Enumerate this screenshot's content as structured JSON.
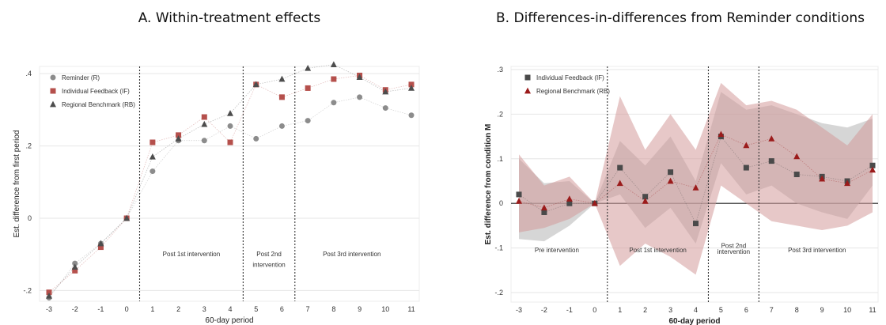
{
  "chart_data": [
    {
      "type": "scatter",
      "title": "A. Within-treatment effects",
      "xlabel": "60-day period",
      "ylabel": "Est. difference from first period",
      "x": [
        -3,
        -2,
        -1,
        0,
        1,
        2,
        3,
        4,
        5,
        6,
        7,
        8,
        9,
        10,
        11
      ],
      "xticks": [
        "-3",
        "-2",
        "-1",
        "0",
        "1",
        "2",
        "3",
        "4",
        "5",
        "6",
        "7",
        "8",
        "9",
        "10",
        "11"
      ],
      "ylim": [
        -0.21,
        0.42
      ],
      "yticks": [
        -0.2,
        0,
        0.2,
        0.4
      ],
      "ytick_labels": [
        "-.2",
        "0",
        ".2",
        ".4"
      ],
      "grid": true,
      "legend_position": "top-left",
      "series": [
        {
          "name": "Reminder (R)",
          "marker": "circle",
          "color": "#8c8c8c",
          "values": [
            -0.22,
            -0.125,
            -0.07,
            0.0,
            0.13,
            0.215,
            0.215,
            0.255,
            0.22,
            0.255,
            0.27,
            0.32,
            0.335,
            0.305,
            0.285
          ]
        },
        {
          "name": "Individual Feedback (IF)",
          "marker": "square",
          "color": "#b5504c",
          "values": [
            -0.205,
            -0.145,
            -0.08,
            0.0,
            0.21,
            0.23,
            0.28,
            0.21,
            0.37,
            0.335,
            0.36,
            0.385,
            0.395,
            0.355,
            0.37
          ]
        },
        {
          "name": "Regional Benchmark (RB)",
          "marker": "triangle",
          "color": "#4d4d4d",
          "values": [
            -0.215,
            -0.135,
            -0.07,
            0.0,
            0.17,
            0.22,
            0.26,
            0.29,
            0.37,
            0.385,
            0.415,
            0.425,
            0.39,
            0.35,
            0.36
          ]
        }
      ],
      "phase_dividers": [
        0.5,
        4.5,
        6.5
      ],
      "annotations": [
        {
          "text": "Post 1st intervention",
          "x": 2.5,
          "y": -0.105
        },
        {
          "text": "Post 2nd",
          "x": 5.5,
          "y": -0.105
        },
        {
          "text": "intervention",
          "x": 5.5,
          "y": -0.135
        },
        {
          "text": "Post 3rd intervention",
          "x": 8.7,
          "y": -0.105
        }
      ]
    },
    {
      "type": "area",
      "title": "B. Differences-in-differences from Reminder conditions",
      "xlabel": "60-day period",
      "ylabel": "Est. difference from condition M",
      "x": [
        -3,
        -2,
        -1,
        0,
        1,
        2,
        3,
        4,
        5,
        6,
        7,
        8,
        9,
        10,
        11
      ],
      "xticks": [
        "-3",
        "-2",
        "-1",
        "0",
        "1",
        "2",
        "3",
        "4",
        "5",
        "6",
        "7",
        "8",
        "9",
        "10",
        "11"
      ],
      "ylim": [
        -0.2,
        0.3
      ],
      "yticks": [
        -0.2,
        -0.1,
        0,
        0.1,
        0.2,
        0.3
      ],
      "ytick_labels": [
        "-.2",
        "-.1",
        "0",
        ".1",
        ".2",
        ".3"
      ],
      "zero_line": true,
      "grid": true,
      "legend_position": "top-left",
      "series": [
        {
          "name": "Individual Feedback (IF)",
          "marker": "square",
          "color": "#4a4a4a",
          "band_color": "#b4b4b4",
          "values": [
            0.02,
            -0.02,
            0.0,
            0.0,
            0.08,
            0.015,
            0.07,
            -0.045,
            0.15,
            0.08,
            0.095,
            0.065,
            0.06,
            0.05,
            0.085
          ],
          "ci_low": [
            -0.08,
            -0.085,
            -0.05,
            0.0,
            0.02,
            -0.055,
            -0.01,
            -0.09,
            0.09,
            0.02,
            0.04,
            0.0,
            -0.02,
            -0.035,
            0.04
          ],
          "ci_high": [
            0.1,
            0.045,
            0.05,
            0.0,
            0.14,
            0.085,
            0.15,
            0.05,
            0.25,
            0.21,
            0.22,
            0.2,
            0.18,
            0.17,
            0.19
          ]
        },
        {
          "name": "Regional Benchmark (RB)",
          "marker": "triangle",
          "color": "#9b1b1b",
          "band_color": "#d39a9a",
          "values": [
            0.005,
            -0.01,
            0.01,
            0.0,
            0.045,
            0.005,
            0.05,
            0.035,
            0.155,
            0.13,
            0.145,
            0.105,
            0.055,
            0.045,
            0.075
          ],
          "ci_low": [
            -0.065,
            -0.055,
            -0.035,
            0.0,
            -0.14,
            -0.09,
            -0.12,
            -0.16,
            0.04,
            0.0,
            -0.04,
            -0.05,
            -0.06,
            -0.05,
            -0.02
          ],
          "ci_high": [
            0.11,
            0.04,
            0.06,
            0.0,
            0.24,
            0.12,
            0.2,
            0.12,
            0.27,
            0.22,
            0.23,
            0.21,
            0.17,
            0.13,
            0.2
          ]
        }
      ],
      "phase_dividers": [
        0.5,
        4.5,
        6.5
      ],
      "annotations": [
        {
          "text": "Pre intervention",
          "x": -1.5,
          "y": -0.11
        },
        {
          "text": "Post 1st intervention",
          "x": 2.5,
          "y": -0.11
        },
        {
          "text": "Post 2nd",
          "x": 5.5,
          "y": -0.1
        },
        {
          "text": "intervention",
          "x": 5.5,
          "y": -0.113
        },
        {
          "text": "Post 3rd intervention",
          "x": 8.8,
          "y": -0.11
        }
      ]
    }
  ]
}
